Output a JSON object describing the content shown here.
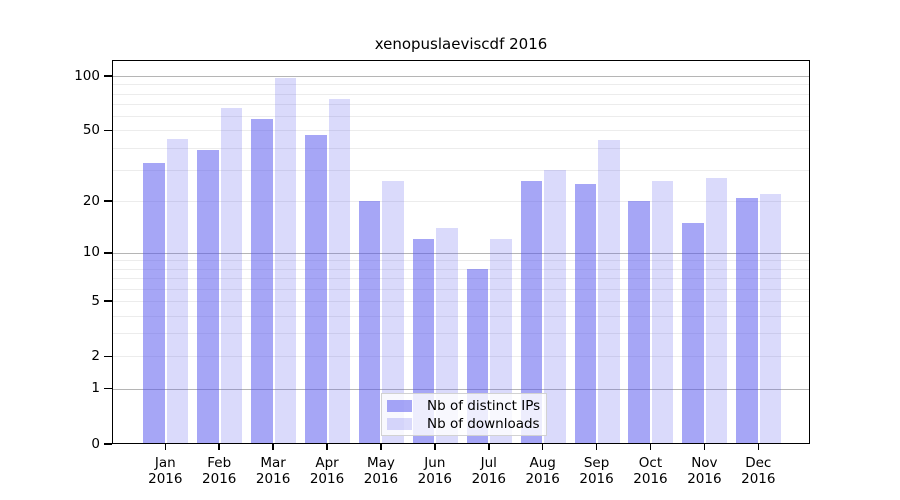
{
  "figure": {
    "title": "xenopuslaeviscdf 2016"
  },
  "chart_data": {
    "type": "bar",
    "title": "xenopuslaeviscdf 2016",
    "categories": [
      "Jan 2016",
      "Feb 2016",
      "Mar 2016",
      "Apr 2016",
      "May 2016",
      "Jun 2016",
      "Jul 2016",
      "Aug 2016",
      "Sep 2016",
      "Oct 2016",
      "Nov 2016",
      "Dec 2016"
    ],
    "series": [
      {
        "name": "Nb of distinct IPs",
        "color": "rgba(85,85,238,0.52)",
        "values": [
          33,
          39,
          58,
          47,
          20,
          12,
          8,
          26,
          25,
          20,
          15,
          21
        ]
      },
      {
        "name": "Nb of downloads",
        "color": "rgba(85,85,238,0.22)",
        "values": [
          45,
          67,
          98,
          75,
          26,
          14,
          12,
          30,
          44,
          26,
          27,
          22
        ]
      }
    ],
    "yscale": "log10(1+y)",
    "ylim": [
      0,
      120
    ],
    "yticks": [
      100,
      50,
      20,
      10,
      5,
      2,
      1,
      0
    ],
    "grid": true,
    "gridlines_minor": [
      2,
      3,
      4,
      5,
      6,
      7,
      8,
      9,
      20,
      30,
      40,
      50,
      60,
      70,
      80,
      90
    ],
    "gridlines_major": [
      1,
      10,
      100
    ],
    "legend_position": "lower center",
    "colors": {
      "grid_minor": "#ececec",
      "grid_major": "#b5b5b5",
      "axis": "#000000",
      "legend_border": "#d2d2d2"
    }
  }
}
